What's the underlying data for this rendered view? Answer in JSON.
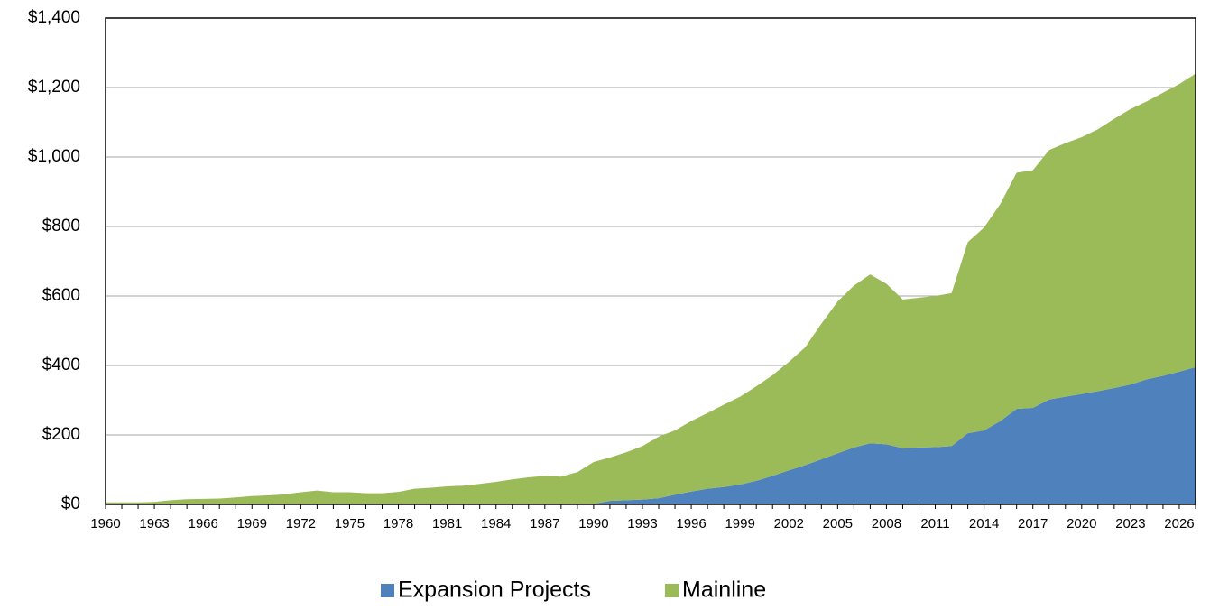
{
  "chart_data": {
    "type": "stacked_area",
    "categories": [
      "1960",
      null,
      null,
      "1963",
      null,
      null,
      "1966",
      null,
      null,
      "1969",
      null,
      null,
      "1972",
      null,
      null,
      "1975",
      null,
      null,
      "1978",
      null,
      null,
      "1981",
      null,
      null,
      "1984",
      null,
      null,
      "1987",
      null,
      null,
      "1990",
      null,
      null,
      "1993",
      null,
      null,
      "1996",
      null,
      null,
      "1999",
      null,
      null,
      "2002",
      null,
      null,
      "2005",
      null,
      null,
      "2008",
      null,
      null,
      "2011",
      null,
      null,
      "2014",
      null,
      null,
      "2017",
      null,
      null,
      "2020",
      null,
      null,
      "2023",
      null,
      null,
      "2026",
      null
    ],
    "series": [
      {
        "name": "Expansion Projects",
        "color": "#4f81bd",
        "values": [
          0,
          0,
          0,
          0,
          0,
          0,
          0,
          0,
          0,
          0,
          0,
          0,
          0,
          0,
          0,
          0,
          0,
          0,
          0,
          0,
          0,
          0,
          0,
          0,
          0,
          0,
          0,
          0,
          0,
          0,
          2,
          10,
          12,
          14,
          18,
          28,
          37,
          45,
          50,
          57,
          68,
          82,
          98,
          113,
          130,
          147,
          164,
          176,
          173,
          162,
          164,
          165,
          168,
          205,
          213,
          240,
          275,
          278,
          302,
          310,
          318,
          326,
          335,
          345,
          360,
          370,
          382,
          395
        ]
      },
      {
        "name": "Mainline",
        "color": "#9bbb59",
        "values": [
          6,
          6,
          6,
          7,
          12,
          15,
          16,
          17,
          20,
          24,
          26,
          29,
          35,
          40,
          35,
          35,
          32,
          32,
          36,
          45,
          48,
          52,
          54,
          59,
          65,
          72,
          78,
          82,
          80,
          93,
          120,
          125,
          138,
          154,
          177,
          185,
          203,
          218,
          237,
          253,
          272,
          290,
          312,
          339,
          390,
          437,
          466,
          486,
          462,
          428,
          431,
          435,
          440,
          550,
          584,
          625,
          680,
          684,
          718,
          730,
          739,
          754,
          775,
          793,
          800,
          815,
          828,
          845
        ]
      }
    ],
    "ylim": [
      0,
      1400
    ],
    "yticks": [
      {
        "value": 0,
        "label": "$0"
      },
      {
        "value": 200,
        "label": "$200"
      },
      {
        "value": 400,
        "label": "$400"
      },
      {
        "value": 600,
        "label": "$600"
      },
      {
        "value": 800,
        "label": "$800"
      },
      {
        "value": 1000,
        "label": "$1,000"
      },
      {
        "value": 1200,
        "label": "$1,200"
      },
      {
        "value": 1400,
        "label": "$1,400"
      }
    ],
    "grid": true,
    "legend": "bottom"
  }
}
